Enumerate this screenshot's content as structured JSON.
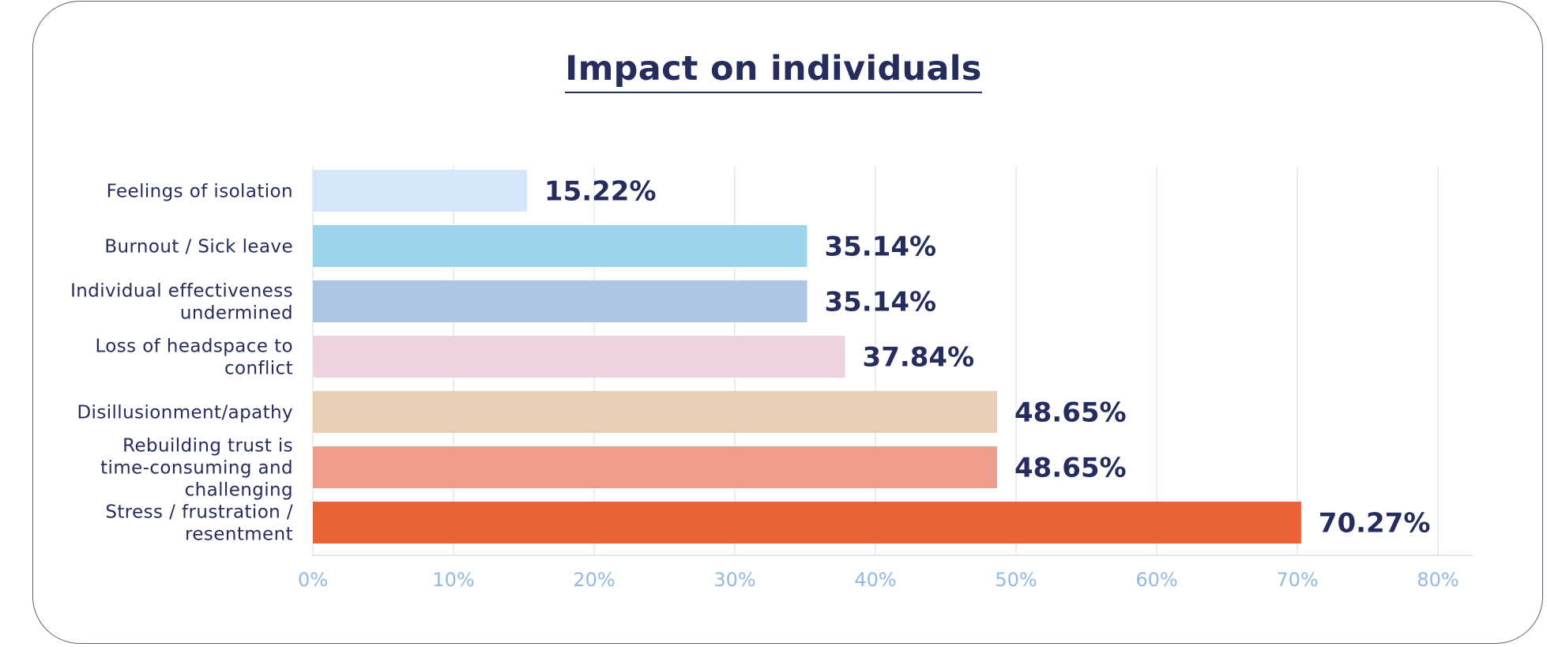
{
  "chart_data": {
    "type": "bar",
    "orientation": "horizontal",
    "title": "Impact on individuals",
    "xlabel": "",
    "ylabel": "",
    "xlim": [
      0,
      80
    ],
    "x_ticks": [
      0,
      10,
      20,
      30,
      40,
      50,
      60,
      70,
      80
    ],
    "x_tick_labels": [
      "0%",
      "10%",
      "20%",
      "30%",
      "40%",
      "50%",
      "60%",
      "70%",
      "80%"
    ],
    "grid": true,
    "legend": "none",
    "categories": [
      [
        "Feelings of isolation"
      ],
      [
        "Burnout / Sick leave"
      ],
      [
        "Individual effectiveness",
        "undermined"
      ],
      [
        "Loss of headspace to",
        "conflict"
      ],
      [
        "Disillusionment/apathy"
      ],
      [
        "Rebuilding trust is",
        "time-consuming and",
        "challenging"
      ],
      [
        "Stress / frustration /",
        "resentment"
      ]
    ],
    "values": [
      15.22,
      35.14,
      35.14,
      37.84,
      48.65,
      48.65,
      70.27
    ],
    "value_labels": [
      "15.22%",
      "35.14%",
      "35.14%",
      "37.84%",
      "48.65%",
      "48.65%",
      "70.27%"
    ],
    "colors": [
      "#D6E6FA",
      "#9CD5EB",
      "#AEC6E4",
      "#EDD3E0",
      "#E8CFB4",
      "#EE9D8A",
      "#E96238"
    ]
  },
  "theme": {
    "text_color": "#262D5C",
    "tick_color": "#95B8E0",
    "grid_color": "#DDE8F4",
    "border_color": "#5B5F85"
  }
}
